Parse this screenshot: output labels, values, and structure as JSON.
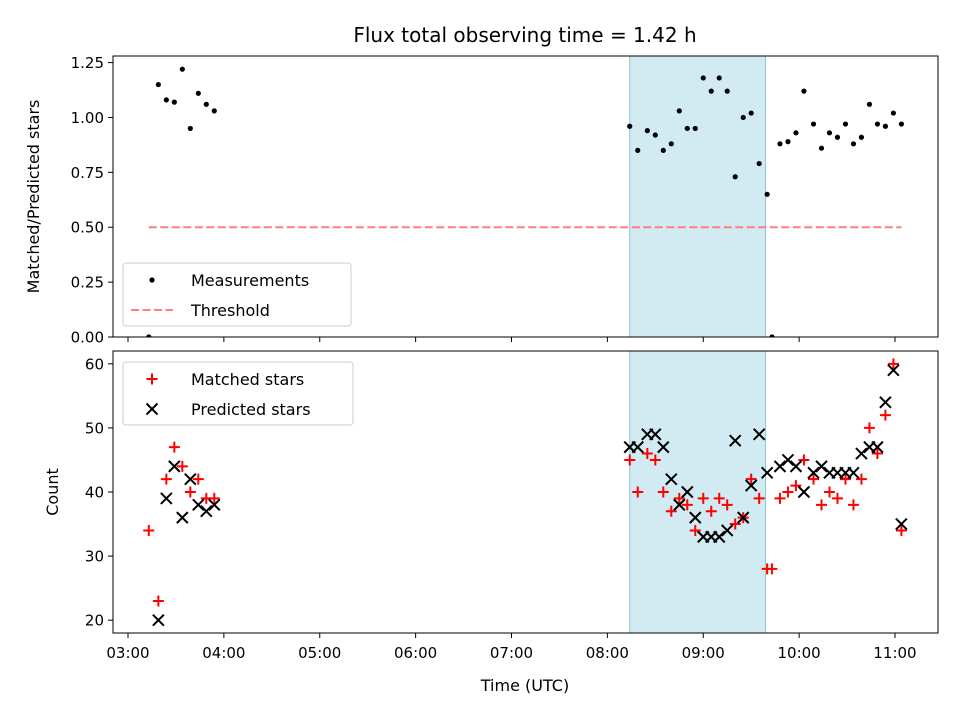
{
  "chart_data": {
    "title": "Flux total observing time = 1.42 h",
    "xlabel": "Time (UTC)",
    "x_ticks": [
      "03:00",
      "04:00",
      "05:00",
      "06:00",
      "07:00",
      "08:00",
      "09:00",
      "10:00",
      "11:00"
    ],
    "highlight_band": {
      "x_start": "08:14",
      "x_end": "09:39",
      "color": "#add8e6"
    },
    "panels": [
      {
        "type": "scatter",
        "ylabel": "Matched/Predicted stars",
        "ylim": [
          0.0,
          1.28
        ],
        "y_ticks": [
          "0.00",
          "0.25",
          "0.50",
          "0.75",
          "1.00",
          "1.25"
        ],
        "legend_position": "lower-left",
        "series": [
          {
            "name": "Measurements",
            "marker": "dot",
            "color": "#000000",
            "points": [
              [
                "03:13",
                0.0
              ],
              [
                "03:19",
                1.15
              ],
              [
                "03:24",
                1.08
              ],
              [
                "03:29",
                1.07
              ],
              [
                "03:34",
                1.22
              ],
              [
                "03:39",
                0.95
              ],
              [
                "03:44",
                1.11
              ],
              [
                "03:49",
                1.06
              ],
              [
                "03:54",
                1.03
              ],
              [
                "08:14",
                0.96
              ],
              [
                "08:19",
                0.85
              ],
              [
                "08:25",
                0.94
              ],
              [
                "08:30",
                0.92
              ],
              [
                "08:35",
                0.85
              ],
              [
                "08:40",
                0.88
              ],
              [
                "08:45",
                1.03
              ],
              [
                "08:50",
                0.95
              ],
              [
                "08:55",
                0.95
              ],
              [
                "09:00",
                1.18
              ],
              [
                "09:05",
                1.12
              ],
              [
                "09:10",
                1.18
              ],
              [
                "09:15",
                1.12
              ],
              [
                "09:20",
                0.73
              ],
              [
                "09:25",
                1.0
              ],
              [
                "09:30",
                1.02
              ],
              [
                "09:35",
                0.79
              ],
              [
                "09:40",
                0.65
              ],
              [
                "09:43",
                0.0
              ],
              [
                "09:48",
                0.88
              ],
              [
                "09:53",
                0.89
              ],
              [
                "09:58",
                0.93
              ],
              [
                "10:03",
                1.12
              ],
              [
                "10:09",
                0.97
              ],
              [
                "10:14",
                0.86
              ],
              [
                "10:19",
                0.93
              ],
              [
                "10:24",
                0.91
              ],
              [
                "10:29",
                0.97
              ],
              [
                "10:34",
                0.88
              ],
              [
                "10:39",
                0.91
              ],
              [
                "10:44",
                1.06
              ],
              [
                "10:49",
                0.97
              ],
              [
                "10:54",
                0.96
              ],
              [
                "10:59",
                1.02
              ],
              [
                "11:04",
                0.97
              ]
            ]
          },
          {
            "name": "Threshold",
            "marker": "dashed-line",
            "color": "#ff7f7f",
            "points": [
              [
                "03:13",
                0.5
              ],
              [
                "11:04",
                0.5
              ]
            ]
          }
        ]
      },
      {
        "type": "scatter",
        "ylabel": "Count",
        "ylim": [
          18,
          62
        ],
        "y_ticks": [
          "20",
          "30",
          "40",
          "50",
          "60"
        ],
        "legend_position": "upper-left",
        "series": [
          {
            "name": "Matched stars",
            "marker": "plus",
            "color": "#ff0000",
            "points": [
              [
                "03:13",
                34
              ],
              [
                "03:19",
                23
              ],
              [
                "03:24",
                42
              ],
              [
                "03:29",
                47
              ],
              [
                "03:34",
                44
              ],
              [
                "03:39",
                40
              ],
              [
                "03:44",
                42
              ],
              [
                "03:49",
                39
              ],
              [
                "03:54",
                39
              ],
              [
                "08:14",
                45
              ],
              [
                "08:19",
                40
              ],
              [
                "08:25",
                46
              ],
              [
                "08:30",
                45
              ],
              [
                "08:35",
                40
              ],
              [
                "08:40",
                37
              ],
              [
                "08:45",
                39
              ],
              [
                "08:50",
                38
              ],
              [
                "08:55",
                34
              ],
              [
                "09:00",
                39
              ],
              [
                "09:05",
                37
              ],
              [
                "09:10",
                39
              ],
              [
                "09:15",
                38
              ],
              [
                "09:20",
                35
              ],
              [
                "09:25",
                36
              ],
              [
                "09:30",
                42
              ],
              [
                "09:35",
                39
              ],
              [
                "09:40",
                28
              ],
              [
                "09:43",
                28
              ],
              [
                "09:48",
                39
              ],
              [
                "09:53",
                40
              ],
              [
                "09:58",
                41
              ],
              [
                "10:03",
                45
              ],
              [
                "10:09",
                42
              ],
              [
                "10:14",
                38
              ],
              [
                "10:19",
                40
              ],
              [
                "10:24",
                39
              ],
              [
                "10:29",
                42
              ],
              [
                "10:34",
                38
              ],
              [
                "10:39",
                42
              ],
              [
                "10:44",
                50
              ],
              [
                "10:49",
                46
              ],
              [
                "10:54",
                52
              ],
              [
                "10:59",
                60
              ],
              [
                "11:04",
                34
              ]
            ]
          },
          {
            "name": "Predicted stars",
            "marker": "x",
            "color": "#000000",
            "points": [
              [
                "03:19",
                20
              ],
              [
                "03:24",
                39
              ],
              [
                "03:29",
                44
              ],
              [
                "03:34",
                36
              ],
              [
                "03:39",
                42
              ],
              [
                "03:44",
                38
              ],
              [
                "03:49",
                37
              ],
              [
                "03:54",
                38
              ],
              [
                "08:14",
                47
              ],
              [
                "08:19",
                47
              ],
              [
                "08:25",
                49
              ],
              [
                "08:30",
                49
              ],
              [
                "08:35",
                47
              ],
              [
                "08:40",
                42
              ],
              [
                "08:45",
                38
              ],
              [
                "08:50",
                40
              ],
              [
                "08:55",
                36
              ],
              [
                "09:00",
                33
              ],
              [
                "09:05",
                33
              ],
              [
                "09:10",
                33
              ],
              [
                "09:15",
                34
              ],
              [
                "09:20",
                48
              ],
              [
                "09:25",
                36
              ],
              [
                "09:30",
                41
              ],
              [
                "09:35",
                49
              ],
              [
                "09:40",
                43
              ],
              [
                "09:48",
                44
              ],
              [
                "09:53",
                45
              ],
              [
                "09:58",
                44
              ],
              [
                "10:03",
                40
              ],
              [
                "10:09",
                43
              ],
              [
                "10:14",
                44
              ],
              [
                "10:19",
                43
              ],
              [
                "10:24",
                43
              ],
              [
                "10:29",
                43
              ],
              [
                "10:34",
                43
              ],
              [
                "10:39",
                46
              ],
              [
                "10:44",
                47
              ],
              [
                "10:49",
                47
              ],
              [
                "10:54",
                54
              ],
              [
                "10:59",
                59
              ],
              [
                "11:04",
                35
              ]
            ]
          }
        ]
      }
    ]
  }
}
